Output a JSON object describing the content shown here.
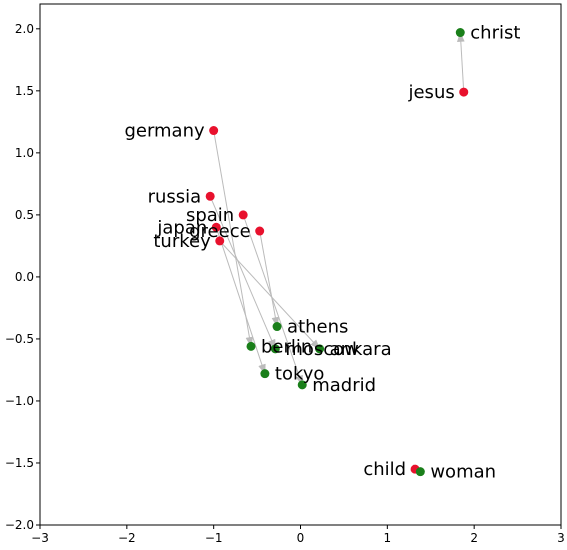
{
  "chart_data": {
    "type": "scatter",
    "title": "",
    "xlabel": "",
    "ylabel": "",
    "xlim": [
      -3,
      3
    ],
    "ylim": [
      -2,
      2.2
    ],
    "xticks": [
      -3,
      -2,
      -1,
      0,
      1,
      2,
      3
    ],
    "yticks": [
      -2.0,
      -1.5,
      -1.0,
      -0.5,
      0.0,
      0.5,
      1.0,
      1.5,
      2.0
    ],
    "xtick_labels": [
      "−3",
      "−2",
      "−1",
      "0",
      "1",
      "2",
      "3"
    ],
    "ytick_labels": [
      "−2.0",
      "−1.5",
      "−1.0",
      "−0.5",
      "0.0",
      "0.5",
      "1.0",
      "1.5",
      "2.0"
    ],
    "grid": false,
    "colors": {
      "source": "#e8112d",
      "target": "#1a7f1a",
      "arrow": "#bbbbbb"
    },
    "source_points": [
      {
        "label": "germany",
        "x": -1.0,
        "y": 1.18
      },
      {
        "label": "russia",
        "x": -1.04,
        "y": 0.65
      },
      {
        "label": "spain",
        "x": -0.66,
        "y": 0.5
      },
      {
        "label": "japan",
        "x": -0.97,
        "y": 0.4
      },
      {
        "label": "greece",
        "x": -0.47,
        "y": 0.37
      },
      {
        "label": "turkey",
        "x": -0.93,
        "y": 0.29
      },
      {
        "label": "jesus",
        "x": 1.88,
        "y": 1.49
      },
      {
        "label": "child",
        "x": 1.32,
        "y": -1.55
      }
    ],
    "target_points": [
      {
        "label": "christ",
        "x": 1.84,
        "y": 1.97
      },
      {
        "label": "athens",
        "x": -0.27,
        "y": -0.4
      },
      {
        "label": "berlin",
        "x": -0.57,
        "y": -0.56
      },
      {
        "label": "moscow",
        "x": -0.29,
        "y": -0.58
      },
      {
        "label": "ankara",
        "x": 0.22,
        "y": -0.58
      },
      {
        "label": "tokyo",
        "x": -0.41,
        "y": -0.78
      },
      {
        "label": "madrid",
        "x": 0.02,
        "y": -0.87
      },
      {
        "label": "woman",
        "x": 1.38,
        "y": -1.57
      }
    ],
    "arrows": [
      {
        "from": "germany",
        "to": "berlin"
      },
      {
        "from": "russia",
        "to": "moscow"
      },
      {
        "from": "spain",
        "to": "madrid"
      },
      {
        "from": "japan",
        "to": "tokyo"
      },
      {
        "from": "greece",
        "to": "athens"
      },
      {
        "from": "turkey",
        "to": "ankara"
      },
      {
        "from": "jesus",
        "to": "christ"
      },
      {
        "from": "child",
        "to": "woman"
      }
    ]
  }
}
